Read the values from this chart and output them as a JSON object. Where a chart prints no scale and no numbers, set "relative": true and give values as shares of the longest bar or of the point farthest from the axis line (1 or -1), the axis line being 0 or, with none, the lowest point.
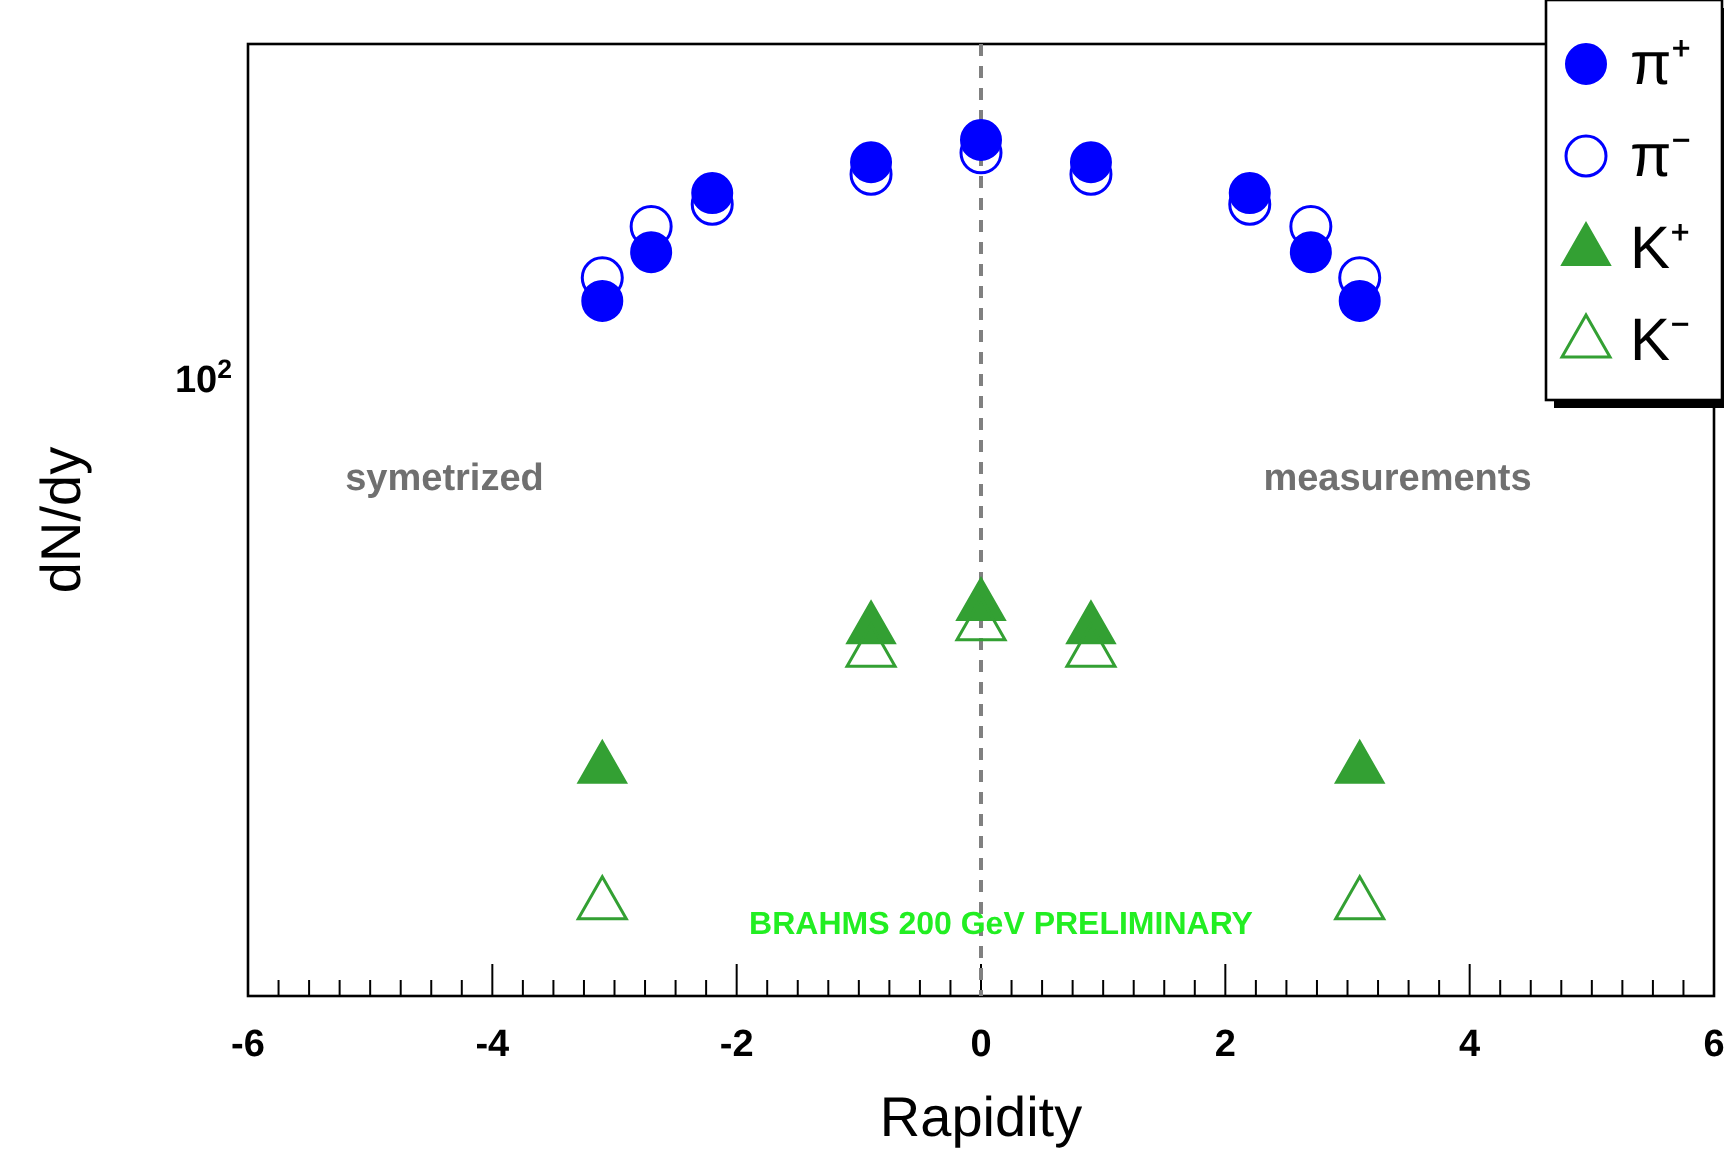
{
  "chart_data": {
    "type": "scatter",
    "xlabel": "Rapidity",
    "ylabel": "dN/dy",
    "relative": true,
    "xlim": [
      -6,
      6
    ],
    "xticks": [
      -6,
      -4,
      -2,
      0,
      2,
      4,
      6
    ],
    "legend": "top right",
    "series": [
      {
        "name": "π⁺",
        "color": "#0000ff",
        "marker": "circle",
        "x": [
          -3.1,
          -2.7,
          -2.2,
          -0.9,
          0,
          0.9,
          2.2,
          2.7,
          3.1
        ],
        "values": [
          0.812,
          0.869,
          0.938,
          0.974,
          1,
          0.974,
          0.938,
          0.869,
          0.812
        ]
      },
      {
        "name": "π⁻",
        "color": "#0000ff",
        "marker": "circle",
        "x": [
          -3.1,
          -2.7,
          -2.2,
          -0.9,
          0,
          0.9,
          2.2,
          2.7,
          3.1
        ],
        "values": [
          0.839,
          0.899,
          0.925,
          0.96,
          0.985,
          0.96,
          0.925,
          0.899,
          0.839
        ]
      },
      {
        "name": "K⁺",
        "color": "#33a033",
        "marker": "triangle",
        "x": [
          -3.1,
          -0.9,
          0,
          0.9,
          3.1
        ],
        "values": [
          0.269,
          0.432,
          0.459,
          0.432,
          0.269
        ]
      },
      {
        "name": "K⁻",
        "color": "#33a033",
        "marker": "triangle",
        "x": [
          -3.1,
          -0.9,
          0,
          0.9,
          3.1
        ],
        "values": [
          0.11,
          0.405,
          0.436,
          0.405,
          0.11
        ]
      }
    ],
    "ref_lines": [
      {
        "axis": "x",
        "value": 0,
        "color": "#808080",
        "line_style": "dashed"
      }
    ],
    "annotations": [
      "10$^{2}$",
      "symetrized",
      "measurements",
      "BRAHMS 200 GeV PRELIMINARY"
    ]
  }
}
